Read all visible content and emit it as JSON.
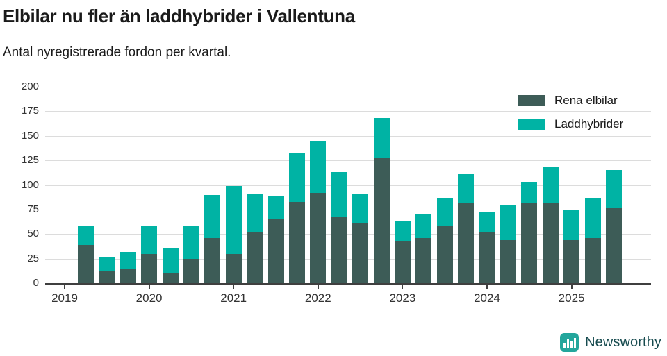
{
  "title": "Elbilar nu fler än laddhybrider i Vallentuna",
  "subtitle": "Antal nyregistrerade fordon per kvartal.",
  "footer": {
    "brand": "Newsworthy",
    "icon": "bar-chart-icon"
  },
  "colors": {
    "elbilar": "#3d5c57",
    "laddhybrider": "#00b3a4",
    "grid": "#dcdcdc",
    "axis": "#3f3f3f",
    "brand_icon": "#23a69c",
    "brand_text": "#174b4f"
  },
  "chart_data": {
    "type": "bar",
    "stacked": true,
    "title": "Elbilar nu fler än laddhybrider i Vallentuna",
    "subtitle": "Antal nyregistrerade fordon per kvartal.",
    "x": [
      "2019 Q2",
      "2019 Q3",
      "2019 Q4",
      "2020 Q1",
      "2020 Q2",
      "2020 Q3",
      "2020 Q4",
      "2021 Q1",
      "2021 Q2",
      "2021 Q3",
      "2021 Q4",
      "2022 Q1",
      "2022 Q2",
      "2022 Q3",
      "2022 Q4",
      "2023 Q1",
      "2023 Q2",
      "2023 Q3",
      "2023 Q4",
      "2024 Q1",
      "2024 Q2",
      "2024 Q3",
      "2024 Q4",
      "2025 Q1",
      "2025 Q2",
      "2025 Q3"
    ],
    "series": [
      {
        "name": "Rena elbilar",
        "values": [
          39,
          12,
          14,
          30,
          10,
          25,
          46,
          30,
          52,
          66,
          83,
          92,
          68,
          61,
          127,
          43,
          46,
          59,
          82,
          52,
          44,
          82,
          82,
          44,
          46,
          76
        ]
      },
      {
        "name": "Laddhybrider",
        "values": [
          20,
          14,
          18,
          29,
          25,
          34,
          44,
          69,
          39,
          23,
          49,
          53,
          45,
          30,
          41,
          20,
          25,
          27,
          29,
          21,
          35,
          21,
          37,
          31,
          40,
          39
        ]
      }
    ],
    "xticks": [
      "2019",
      "2020",
      "2021",
      "2022",
      "2023",
      "2024",
      "2025"
    ],
    "yticks": [
      0,
      25,
      50,
      75,
      100,
      125,
      150,
      175,
      200
    ],
    "ylim": [
      0,
      200
    ],
    "grid": "horizontal",
    "legend_position": "top-right"
  }
}
